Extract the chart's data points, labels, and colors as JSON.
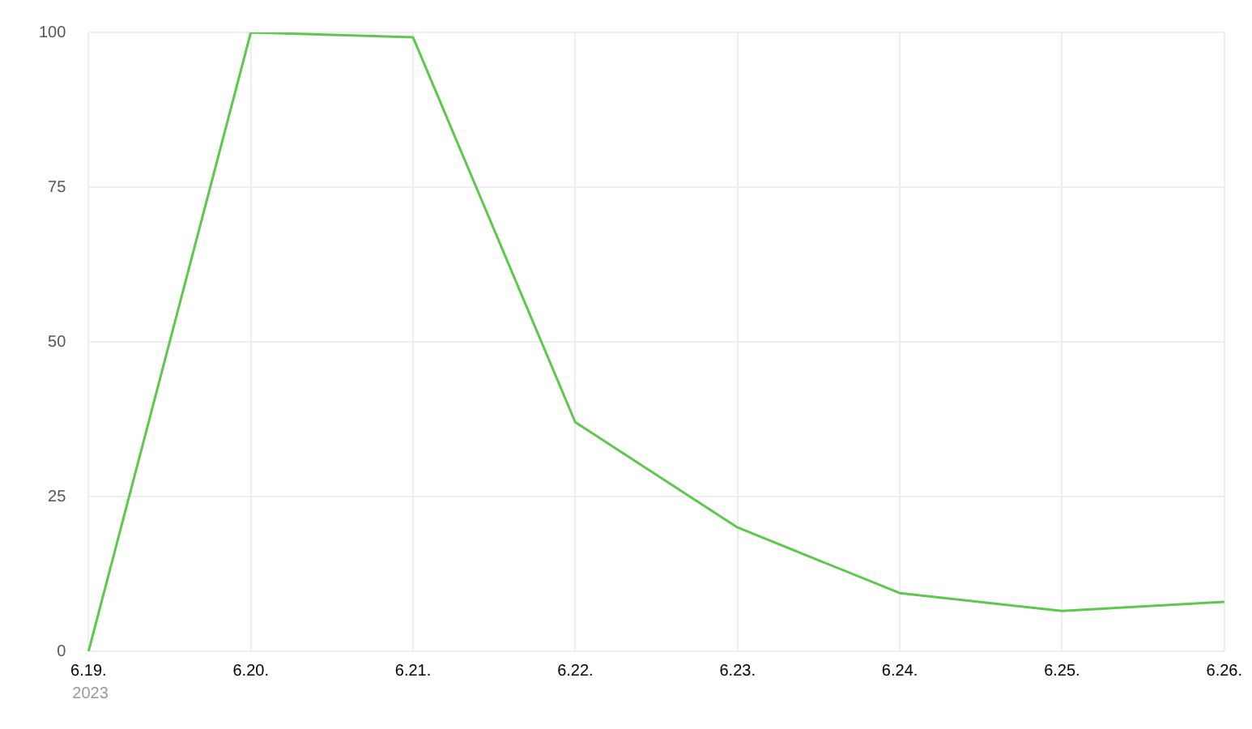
{
  "chart_data": {
    "type": "line",
    "categories": [
      "6.19.",
      "6.20.",
      "6.21.",
      "6.22.",
      "6.23.",
      "6.24.",
      "6.25.",
      "6.26."
    ],
    "series": [
      {
        "color": "#5cc84c",
        "values": [
          0,
          100,
          99.2,
          37,
          20,
          9.4,
          6.5,
          8
        ]
      }
    ],
    "ylim": [
      0,
      100
    ],
    "yticks": [
      0,
      25,
      50,
      75,
      100
    ],
    "grid": true,
    "legend": false,
    "marker": "none",
    "line_style": "solid",
    "annotations": [
      "2023"
    ]
  }
}
